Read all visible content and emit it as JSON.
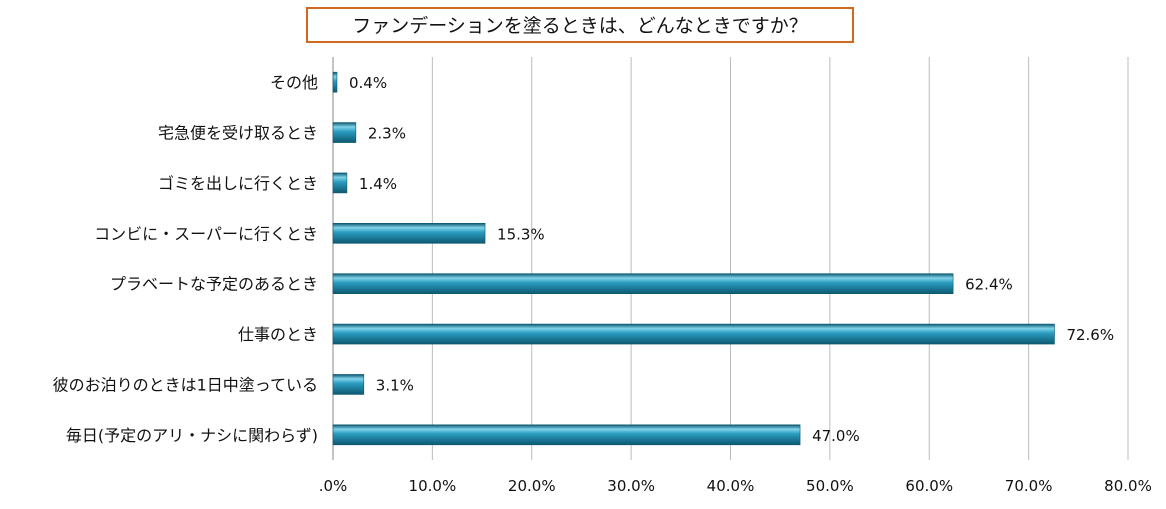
{
  "chart_data": {
    "type": "bar",
    "orientation": "horizontal",
    "title": "ファンデーションを塗るときは、どんなときですか？",
    "categories": [
      "その他",
      "宅急便を受け取るとき",
      "ゴミを出しに行くとき",
      "コンビに・スーパーに行くとき",
      "プラベートな予定のあるとき",
      "仕事のとき",
      "彼のお泊りのときは1日中塗っている",
      "毎日(予定のアリ・ナシに関わらず)"
    ],
    "values": [
      0.4,
      2.3,
      1.4,
      15.3,
      62.4,
      72.6,
      3.1,
      47.0
    ],
    "data_labels": [
      "0.4%",
      "2.3%",
      "1.4%",
      "15.3%",
      "62.4%",
      "72.6%",
      "3.1%",
      "47.0%"
    ],
    "xlim": [
      0,
      80
    ],
    "x_ticks": [
      0,
      10,
      20,
      30,
      40,
      50,
      60,
      70,
      80
    ],
    "x_tick_labels": [
      ".0%",
      "10.0%",
      "20.0%",
      "30.0%",
      "40.0%",
      "50.0%",
      "60.0%",
      "70.0%",
      "80.0%"
    ],
    "xlabel": "",
    "ylabel": "",
    "grid": true,
    "legend": "none",
    "colors": {
      "bar_fill": "#1a86a8",
      "bar_highlight": "#7fd3ea",
      "bar_shadow": "#0d5870",
      "grid": "#bcbcbc",
      "title_border": "#d2691e"
    }
  }
}
